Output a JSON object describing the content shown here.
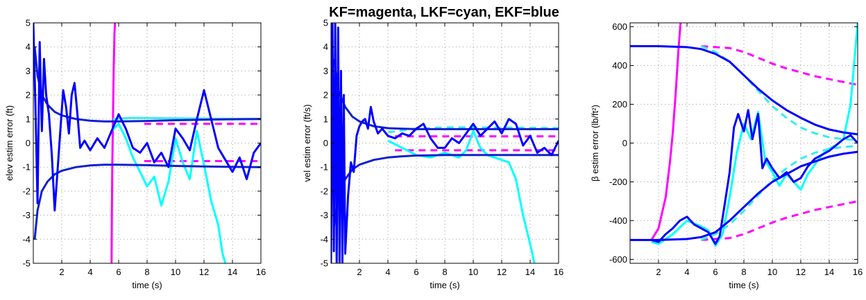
{
  "figure_title": "KF=magenta, LKF=cyan, EKF=blue",
  "colors": {
    "kf": "#ff00ff",
    "lkf": "#00ffff",
    "ekf": "#0000ff",
    "lkf_soft": "#33eeee",
    "ekf_dark": "#1020d0"
  },
  "chart_data": [
    {
      "type": "line",
      "title": "",
      "xlabel": "time (s)",
      "ylabel": "elev estim error (ft)",
      "xlim": [
        0,
        16
      ],
      "ylim": [
        -5,
        5
      ],
      "xticks": [
        2,
        4,
        6,
        8,
        10,
        12,
        14,
        16
      ],
      "yticks": [
        -5,
        -4,
        -3,
        -2,
        -1,
        0,
        1,
        2,
        3,
        4,
        5
      ],
      "grid": true,
      "series": [
        {
          "name": "KF error",
          "color": "kf",
          "style": "solid",
          "x": [
            5.5,
            5.52,
            5.55,
            5.6,
            5.65,
            5.7,
            5.74
          ],
          "y": [
            -5,
            -3,
            -1,
            1,
            3,
            4.5,
            5
          ]
        },
        {
          "name": "KF +2sigma",
          "color": "kf",
          "style": "dashed",
          "x": [
            7.8,
            16
          ],
          "y": [
            0.8,
            0.8
          ]
        },
        {
          "name": "KF -2sigma",
          "color": "kf",
          "style": "dashed",
          "x": [
            7.8,
            16
          ],
          "y": [
            -0.75,
            -0.75
          ]
        },
        {
          "name": "LKF +2sigma",
          "color": "lkf_soft",
          "style": "solid",
          "x": [
            5.6,
            6,
            7,
            8,
            10,
            12,
            14,
            16
          ],
          "y": [
            1.0,
            1.02,
            1.05,
            1.04,
            1.03,
            1.02,
            1.01,
            1.0
          ]
        },
        {
          "name": "LKF error",
          "color": "lkf",
          "style": "solid",
          "x": [
            5.5,
            6,
            6.5,
            7,
            7.5,
            8,
            8.5,
            9,
            9.5,
            10,
            10.5,
            11,
            11.5,
            12,
            12.5,
            13,
            13.3,
            13.5
          ],
          "y": [
            0.5,
            0.8,
            0.2,
            -0.6,
            -1.2,
            -1.8,
            -1.4,
            -2.6,
            -1.6,
            0.2,
            -0.8,
            -1.5,
            0.5,
            -0.9,
            -2.4,
            -3.4,
            -4.6,
            -5
          ]
        },
        {
          "name": "EKF +2sigma",
          "color": "ekf_dark",
          "style": "solid",
          "x": [
            0.1,
            0.3,
            0.6,
            1,
            1.5,
            2,
            3,
            4,
            5,
            6,
            8,
            10,
            12,
            14,
            16
          ],
          "y": [
            4.0,
            2.8,
            2.0,
            1.6,
            1.3,
            1.15,
            1.0,
            0.93,
            0.9,
            0.9,
            0.92,
            0.95,
            0.97,
            0.99,
            1.0
          ]
        },
        {
          "name": "EKF -2sigma",
          "color": "ekf_dark",
          "style": "solid",
          "x": [
            0.1,
            0.3,
            0.6,
            1,
            1.5,
            2,
            3,
            4,
            5,
            6,
            8,
            10,
            12,
            14,
            16
          ],
          "y": [
            -4.0,
            -2.8,
            -2.0,
            -1.6,
            -1.3,
            -1.15,
            -1.0,
            -0.93,
            -0.9,
            -0.9,
            -0.92,
            -0.95,
            -0.97,
            -0.99,
            -1.0
          ]
        },
        {
          "name": "EKF error",
          "color": "ekf",
          "style": "solid",
          "x": [
            0,
            0.15,
            0.3,
            0.45,
            0.6,
            0.75,
            0.9,
            1.1,
            1.3,
            1.5,
            1.7,
            1.9,
            2.1,
            2.3,
            2.5,
            2.7,
            2.9,
            3.1,
            3.3,
            3.6,
            4,
            4.5,
            5,
            5.5,
            6,
            6.5,
            7,
            7.5,
            8,
            8.5,
            9,
            9.5,
            10,
            10.5,
            11,
            11.5,
            12,
            12.5,
            13,
            13.5,
            14,
            14.5,
            15,
            15.5,
            16
          ],
          "y": [
            5,
            1.5,
            -2.5,
            4.2,
            0.5,
            3.5,
            2.0,
            1.2,
            -0.5,
            -2.8,
            -1.2,
            0.5,
            2.2,
            1.5,
            0.4,
            2.0,
            2.5,
            1.2,
            -0.2,
            0.1,
            -0.3,
            0.2,
            -0.2,
            0.5,
            1.2,
            0.6,
            -0.2,
            -0.4,
            0.0,
            -0.8,
            -0.4,
            -1.0,
            0.6,
            0.2,
            -0.3,
            1.0,
            2.2,
            1.0,
            -0.2,
            -0.7,
            -1.2,
            -0.6,
            -1.5,
            -0.4,
            0.0
          ]
        }
      ]
    },
    {
      "type": "line",
      "title": "",
      "xlabel": "time (s)",
      "ylabel": "vel estim error (ft/s)",
      "xlim": [
        0,
        16
      ],
      "ylim": [
        -5,
        5
      ],
      "xticks": [
        2,
        4,
        6,
        8,
        10,
        12,
        14,
        16
      ],
      "yticks": [
        -5,
        -4,
        -3,
        -2,
        -1,
        0,
        1,
        2,
        3,
        4,
        5
      ],
      "grid": true,
      "series": [
        {
          "name": "KF +2sigma",
          "color": "kf",
          "style": "dashed",
          "x": [
            4.5,
            16
          ],
          "y": [
            0.28,
            0.28
          ]
        },
        {
          "name": "KF -2sigma",
          "color": "kf",
          "style": "dashed",
          "x": [
            4.5,
            16
          ],
          "y": [
            -0.3,
            -0.3
          ]
        },
        {
          "name": "LKF +2sigma",
          "color": "lkf_soft",
          "style": "dashed",
          "x": [
            4,
            6,
            8,
            10,
            12,
            14,
            16
          ],
          "y": [
            0.45,
            0.6,
            0.65,
            0.65,
            0.64,
            0.63,
            0.62
          ]
        },
        {
          "name": "LKF error",
          "color": "lkf",
          "style": "solid",
          "x": [
            4,
            5,
            6,
            7,
            8,
            8.5,
            9,
            9.5,
            10,
            10.5,
            11,
            11.5,
            12,
            12.5,
            13,
            13.5,
            14,
            14.3
          ],
          "y": [
            0.1,
            -0.2,
            -0.5,
            -0.6,
            -0.4,
            -0.5,
            -0.6,
            -0.3,
            0.5,
            -0.2,
            -0.5,
            -0.6,
            -0.7,
            -0.8,
            -1.5,
            -3.0,
            -4.2,
            -5
          ]
        },
        {
          "name": "EKF +2sigma",
          "color": "ekf_dark",
          "style": "solid",
          "x": [
            0.2,
            0.5,
            1,
            1.5,
            2,
            3,
            4,
            5,
            6,
            8,
            10,
            12,
            14,
            16
          ],
          "y": [
            3.5,
            2.2,
            1.5,
            1.1,
            0.9,
            0.7,
            0.62,
            0.6,
            0.58,
            0.58,
            0.58,
            0.58,
            0.58,
            0.58
          ]
        },
        {
          "name": "EKF -2sigma",
          "color": "ekf_dark",
          "style": "solid",
          "x": [
            0.2,
            0.5,
            1,
            1.5,
            2,
            3,
            4,
            5,
            6,
            8,
            10,
            12,
            14,
            16
          ],
          "y": [
            -3.5,
            -2.2,
            -1.5,
            -1.1,
            -0.9,
            -0.7,
            -0.6,
            -0.55,
            -0.52,
            -0.5,
            -0.5,
            -0.5,
            -0.5,
            -0.5
          ]
        },
        {
          "name": "EKF error",
          "color": "ekf",
          "style": "solid",
          "x": [
            0,
            0.1,
            0.2,
            0.3,
            0.4,
            0.5,
            0.6,
            0.7,
            0.8,
            0.9,
            1.0,
            1.2,
            1.4,
            1.6,
            1.8,
            2.0,
            2.2,
            2.4,
            2.6,
            2.8,
            3.0,
            3.3,
            3.6,
            4,
            4.5,
            5,
            5.5,
            6,
            6.5,
            7,
            7.5,
            8,
            8.5,
            9,
            9.5,
            10,
            10.5,
            11,
            11.5,
            12,
            12.5,
            13,
            13.5,
            14,
            14.5,
            15,
            15.5,
            16
          ],
          "y": [
            -5,
            5,
            -4.5,
            5,
            -5,
            4.8,
            -5,
            3.0,
            -5,
            2.0,
            -4.6,
            -2.2,
            -0.8,
            -1.2,
            0.3,
            0.7,
            0.9,
            1.0,
            0.6,
            1.5,
            0.9,
            0.4,
            0.6,
            0.3,
            0.2,
            0.4,
            0.3,
            0.6,
            0.8,
            0.2,
            -0.2,
            -0.2,
            0.2,
            0.0,
            0.4,
            0.8,
            0.3,
            0.6,
            0.9,
            0.4,
            1.0,
            0.8,
            -0.1,
            0.3,
            -0.4,
            -0.2,
            -0.5,
            0.1
          ]
        }
      ]
    },
    {
      "type": "line",
      "title": "",
      "xlabel": "time (s)",
      "ylabel": "β estim error (lb/ft²)",
      "xlim": [
        0,
        16
      ],
      "ylim": [
        -620,
        620
      ],
      "xticks": [
        2,
        4,
        6,
        8,
        10,
        12,
        14,
        16
      ],
      "yticks": [
        -600,
        -400,
        -200,
        0,
        200,
        400,
        600
      ],
      "grid": true,
      "series": [
        {
          "name": "KF error",
          "color": "kf",
          "style": "solid",
          "x": [
            1.5,
            2.0,
            2.5,
            2.8,
            3.0,
            3.2,
            3.4,
            3.55
          ],
          "y": [
            -500,
            -440,
            -280,
            -100,
            50,
            250,
            480,
            620
          ]
        },
        {
          "name": "KF +2sigma",
          "color": "kf",
          "style": "dashed",
          "x": [
            5,
            6,
            7,
            8,
            9,
            10,
            11,
            12,
            13,
            14,
            15,
            16
          ],
          "y": [
            500,
            495,
            490,
            470,
            440,
            410,
            385,
            365,
            345,
            330,
            315,
            300
          ]
        },
        {
          "name": "KF -2sigma",
          "color": "kf",
          "style": "dashed",
          "x": [
            5,
            6,
            7,
            8,
            9,
            10,
            11,
            12,
            13,
            14,
            15,
            16
          ],
          "y": [
            -500,
            -495,
            -490,
            -470,
            -440,
            -410,
            -385,
            -365,
            -345,
            -330,
            -315,
            -300
          ]
        },
        {
          "name": "LKF +2sigma",
          "color": "lkf_soft",
          "style": "dashed",
          "x": [
            5,
            6,
            7,
            8,
            9,
            10,
            11,
            12,
            13,
            14,
            15,
            16
          ],
          "y": [
            500,
            470,
            420,
            350,
            270,
            190,
            130,
            80,
            50,
            30,
            20,
            15
          ]
        },
        {
          "name": "LKF -2sigma",
          "color": "lkf_soft",
          "style": "dashed",
          "x": [
            5,
            6,
            7,
            8,
            9,
            10,
            11,
            12,
            13,
            14,
            15,
            16
          ],
          "y": [
            -500,
            -470,
            -420,
            -350,
            -270,
            -190,
            -130,
            -80,
            -50,
            -30,
            -20,
            -15
          ]
        },
        {
          "name": "LKF error",
          "color": "lkf",
          "style": "solid",
          "x": [
            1.5,
            2,
            3,
            4,
            5,
            5.5,
            6,
            6.5,
            7,
            7.5,
            8,
            8.5,
            9,
            9.5,
            10,
            10.5,
            11,
            11.5,
            12,
            12.5,
            13,
            13.5,
            14,
            14.5,
            15,
            15.5,
            16
          ],
          "y": [
            -510,
            -520,
            -470,
            -400,
            -430,
            -450,
            -530,
            -470,
            -280,
            -50,
            100,
            20,
            160,
            -90,
            -150,
            -220,
            -160,
            -200,
            -240,
            -160,
            -110,
            -60,
            -30,
            -10,
            20,
            200,
            620
          ]
        },
        {
          "name": "EKF +2sigma",
          "color": "ekf",
          "style": "solid",
          "x": [
            0,
            2,
            4,
            5,
            6,
            7,
            8,
            9,
            10,
            11,
            12,
            13,
            14,
            15,
            16
          ],
          "y": [
            500,
            500,
            495,
            485,
            460,
            420,
            350,
            280,
            220,
            170,
            130,
            95,
            70,
            55,
            45
          ]
        },
        {
          "name": "EKF -2sigma",
          "color": "ekf",
          "style": "solid",
          "x": [
            0,
            2,
            4,
            5,
            6,
            7,
            8,
            9,
            10,
            11,
            12,
            13,
            14,
            15,
            16
          ],
          "y": [
            -500,
            -500,
            -495,
            -485,
            -460,
            -400,
            -330,
            -260,
            -200,
            -160,
            -120,
            -95,
            -70,
            -55,
            -45
          ]
        },
        {
          "name": "EKF error",
          "color": "ekf",
          "style": "solid",
          "x": [
            1.5,
            2,
            2.5,
            3,
            3.5,
            4,
            4.5,
            5,
            5.5,
            6,
            6.3,
            6.6,
            7,
            7.3,
            7.6,
            8,
            8.3,
            8.6,
            9,
            9.3,
            9.6,
            10,
            10.5,
            11,
            11.5,
            12,
            12.5,
            13,
            13.5,
            14,
            14.5,
            15,
            15.5,
            16
          ],
          "y": [
            -500,
            -510,
            -470,
            -440,
            -400,
            -380,
            -420,
            -440,
            -460,
            -520,
            -480,
            -340,
            -150,
            80,
            150,
            60,
            170,
            20,
            150,
            -130,
            -80,
            -130,
            -180,
            -150,
            -200,
            -180,
            -120,
            -80,
            -60,
            -40,
            -10,
            20,
            40,
            0
          ]
        }
      ]
    }
  ]
}
